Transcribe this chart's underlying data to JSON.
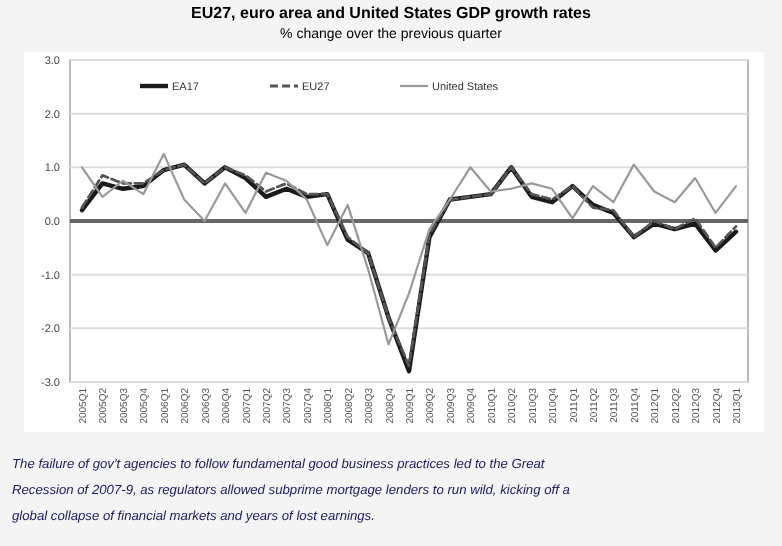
{
  "chart_data": {
    "type": "line",
    "title": "EU27, euro area and United States GDP growth rates",
    "subtitle": "% change over the previous quarter",
    "categories": [
      "2005Q1",
      "2005Q2",
      "2005Q3",
      "2005Q4",
      "2006Q1",
      "2006Q2",
      "2006Q3",
      "2006Q4",
      "2007Q1",
      "2007Q2",
      "2007Q3",
      "2007Q4",
      "2008Q1",
      "2008Q2",
      "2008Q3",
      "2008Q4",
      "2009Q1",
      "2009Q2",
      "2009Q3",
      "2009Q4",
      "2010Q1",
      "2010Q2",
      "2010Q3",
      "2010Q4",
      "2011Q1",
      "2011Q2",
      "2011Q3",
      "2011Q4",
      "2012Q1",
      "2012Q2",
      "2012Q3",
      "2012Q4",
      "2013Q1"
    ],
    "series": [
      {
        "name": "EA17",
        "color": "#1a1a1a",
        "line_style": "solid",
        "values": [
          0.2,
          0.7,
          0.6,
          0.65,
          0.95,
          1.05,
          0.7,
          1.0,
          0.8,
          0.45,
          0.6,
          0.45,
          0.5,
          -0.35,
          -0.6,
          -1.8,
          -2.8,
          -0.3,
          0.4,
          0.45,
          0.5,
          1.0,
          0.45,
          0.35,
          0.65,
          0.3,
          0.15,
          -0.3,
          -0.05,
          -0.15,
          -0.05,
          -0.55,
          -0.2
        ]
      },
      {
        "name": "EU27",
        "color": "#555555",
        "line_style": "dashed",
        "values": [
          0.25,
          0.85,
          0.7,
          0.7,
          0.95,
          1.05,
          0.7,
          1.0,
          0.85,
          0.55,
          0.7,
          0.5,
          0.5,
          -0.3,
          -0.6,
          -1.8,
          -2.7,
          -0.25,
          0.4,
          0.45,
          0.5,
          1.0,
          0.5,
          0.4,
          0.65,
          0.25,
          0.2,
          -0.3,
          0.0,
          -0.15,
          0.05,
          -0.5,
          -0.1
        ]
      },
      {
        "name": "United States",
        "color": "#999999",
        "line_style": "solid",
        "values": [
          1.0,
          0.45,
          0.75,
          0.5,
          1.25,
          0.4,
          0.0,
          0.7,
          0.15,
          0.9,
          0.75,
          0.4,
          -0.45,
          0.3,
          -0.9,
          -2.3,
          -1.35,
          -0.15,
          0.4,
          1.0,
          0.55,
          0.6,
          0.7,
          0.6,
          0.05,
          0.65,
          0.35,
          1.05,
          0.55,
          0.35,
          0.8,
          0.15,
          0.65
        ]
      }
    ],
    "ylim": [
      -3,
      3
    ],
    "yticks": [
      {
        "value": -3,
        "label": "-3.0"
      },
      {
        "value": -2,
        "label": "-2.0"
      },
      {
        "value": -1,
        "label": "-1.0"
      },
      {
        "value": 0,
        "label": "0.0"
      },
      {
        "value": 1,
        "label": "1.0"
      },
      {
        "value": 2,
        "label": "2.0"
      },
      {
        "value": 3,
        "label": "3.0"
      }
    ],
    "grid": "y",
    "legend": "top",
    "marker": "none",
    "ref_lines": [
      {
        "axis": "y",
        "value": 0,
        "color": "#666666"
      }
    ],
    "annotations": [
      "The failure of gov't agencies to follow fundamental good business practices led to the Great Recession of 2007-9, as regulators allowed subprime mortgage lenders to run wild, kicking off a global collapse of financial markets and years of lost earnings."
    ]
  }
}
